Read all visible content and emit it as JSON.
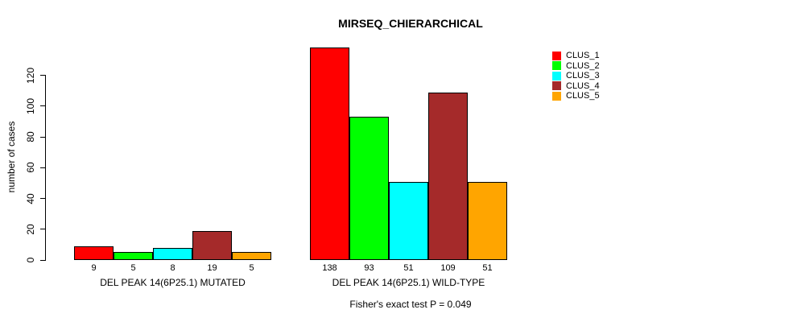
{
  "title": "MIRSEQ_CHIERARCHICAL",
  "caption": "Fisher's exact test P = 0.049",
  "chart_data": {
    "type": "bar",
    "title": "MIRSEQ_CHIERARCHICAL",
    "xlabel": "",
    "ylabel": "number of cases",
    "ylim": [
      0,
      140
    ],
    "yticks": [
      0,
      20,
      40,
      60,
      80,
      100,
      120
    ],
    "grid": false,
    "legend_position": "top-right",
    "series": [
      {
        "name": "CLUS_1",
        "color": "#ff0000",
        "values": [
          9,
          138
        ]
      },
      {
        "name": "CLUS_2",
        "color": "#00ff00",
        "values": [
          5,
          93
        ]
      },
      {
        "name": "CLUS_3",
        "color": "#00ffff",
        "values": [
          8,
          51
        ]
      },
      {
        "name": "CLUS_4",
        "color": "#a52a2a",
        "values": [
          19,
          109
        ]
      },
      {
        "name": "CLUS_5",
        "color": "#ffa500",
        "values": [
          5,
          51
        ]
      }
    ],
    "categories": [
      "DEL PEAK 14(6P25.1) MUTATED",
      "DEL PEAK 14(6P25.1) WILD-TYPE"
    ],
    "bar_value_labels": [
      [
        "9",
        "5",
        "8",
        "19",
        "5"
      ],
      [
        "138",
        "93",
        "51",
        "109",
        "51"
      ]
    ],
    "annotation": "Fisher's exact test P = 0.049",
    "colors": {
      "background": "#ffffff",
      "axis": "#000000",
      "text": "#000000"
    }
  }
}
